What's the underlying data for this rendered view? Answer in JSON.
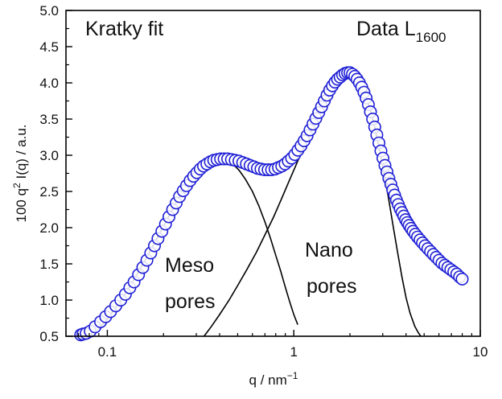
{
  "chart_data": {
    "type": "scatter",
    "x_scale": "log",
    "xlim": [
      0.06,
      10
    ],
    "ylim": [
      0.5,
      5.0
    ],
    "xlabel_main": "q / nm",
    "xlabel_sup": "−1",
    "ylabel_pre": "100 q",
    "ylabel_sup": "2",
    "ylabel_post": " I(q) / a.u.",
    "x_ticks": [
      {
        "value": 0.1,
        "label": "0.1"
      },
      {
        "value": 1,
        "label": "1"
      },
      {
        "value": 10,
        "label": "10"
      }
    ],
    "y_ticks": [
      {
        "value": 0.5,
        "label": "0.5"
      },
      {
        "value": 1.0,
        "label": "1.0"
      },
      {
        "value": 1.5,
        "label": "1.5"
      },
      {
        "value": 2.0,
        "label": "2.0"
      },
      {
        "value": 2.5,
        "label": "2.5"
      },
      {
        "value": 3.0,
        "label": "3.0"
      },
      {
        "value": 3.5,
        "label": "3.5"
      },
      {
        "value": 4.0,
        "label": "4.0"
      },
      {
        "value": 4.5,
        "label": "4.5"
      },
      {
        "value": 5.0,
        "label": "5.0"
      }
    ],
    "annotations": {
      "title_left": "Kratky fit",
      "title_right_main": "Data L",
      "title_right_sub": "1600",
      "meso_line1": "Meso",
      "meso_line2": "pores",
      "nano_line1": "Nano",
      "nano_line2": "pores"
    },
    "marker_color": "#1f1fd6",
    "fit_color": "#000000",
    "series": [
      {
        "name": "Data L1600",
        "kind": "points",
        "points": [
          [
            0.072,
            0.52
          ],
          [
            0.074,
            0.53
          ],
          [
            0.077,
            0.54
          ],
          [
            0.081,
            0.57
          ],
          [
            0.086,
            0.63
          ],
          [
            0.092,
            0.7
          ],
          [
            0.098,
            0.77
          ],
          [
            0.104,
            0.84
          ],
          [
            0.111,
            0.92
          ],
          [
            0.118,
            1.0
          ],
          [
            0.125,
            1.08
          ],
          [
            0.132,
            1.17
          ],
          [
            0.139,
            1.25
          ],
          [
            0.147,
            1.35
          ],
          [
            0.155,
            1.45
          ],
          [
            0.163,
            1.55
          ],
          [
            0.171,
            1.65
          ],
          [
            0.179,
            1.75
          ],
          [
            0.187,
            1.85
          ],
          [
            0.196,
            1.95
          ],
          [
            0.205,
            2.05
          ],
          [
            0.214,
            2.15
          ],
          [
            0.224,
            2.25
          ],
          [
            0.234,
            2.34
          ],
          [
            0.244,
            2.43
          ],
          [
            0.255,
            2.51
          ],
          [
            0.266,
            2.58
          ],
          [
            0.278,
            2.65
          ],
          [
            0.29,
            2.71
          ],
          [
            0.302,
            2.76
          ],
          [
            0.315,
            2.81
          ],
          [
            0.328,
            2.85
          ],
          [
            0.342,
            2.88
          ],
          [
            0.357,
            2.91
          ],
          [
            0.372,
            2.93
          ],
          [
            0.388,
            2.94
          ],
          [
            0.405,
            2.95
          ],
          [
            0.423,
            2.95
          ],
          [
            0.442,
            2.95
          ],
          [
            0.463,
            2.94
          ],
          [
            0.485,
            2.93
          ],
          [
            0.508,
            2.92
          ],
          [
            0.532,
            2.9
          ],
          [
            0.557,
            2.88
          ],
          [
            0.583,
            2.86
          ],
          [
            0.61,
            2.84
          ],
          [
            0.638,
            2.82
          ],
          [
            0.667,
            2.81
          ],
          [
            0.697,
            2.8
          ],
          [
            0.728,
            2.8
          ],
          [
            0.76,
            2.8
          ],
          [
            0.793,
            2.81
          ],
          [
            0.827,
            2.83
          ],
          [
            0.862,
            2.85
          ],
          [
            0.898,
            2.88
          ],
          [
            0.935,
            2.92
          ],
          [
            0.973,
            2.96
          ],
          [
            1.012,
            3.01
          ],
          [
            1.052,
            3.07
          ],
          [
            1.093,
            3.13
          ],
          [
            1.135,
            3.2
          ],
          [
            1.178,
            3.27
          ],
          [
            1.222,
            3.35
          ],
          [
            1.267,
            3.43
          ],
          [
            1.313,
            3.51
          ],
          [
            1.36,
            3.59
          ],
          [
            1.408,
            3.67
          ],
          [
            1.457,
            3.75
          ],
          [
            1.507,
            3.83
          ],
          [
            1.558,
            3.9
          ],
          [
            1.61,
            3.96
          ],
          [
            1.663,
            4.01
          ],
          [
            1.717,
            4.05
          ],
          [
            1.772,
            4.08
          ],
          [
            1.828,
            4.11
          ],
          [
            1.885,
            4.13
          ],
          [
            1.943,
            4.14
          ],
          [
            2.002,
            4.14
          ],
          [
            2.062,
            4.12
          ],
          [
            2.123,
            4.09
          ],
          [
            2.185,
            4.05
          ],
          [
            2.248,
            4.0
          ],
          [
            2.312,
            3.94
          ],
          [
            2.377,
            3.87
          ],
          [
            2.443,
            3.79
          ],
          [
            2.51,
            3.7
          ],
          [
            2.578,
            3.6
          ],
          [
            2.647,
            3.5
          ],
          [
            2.717,
            3.39
          ],
          [
            2.788,
            3.28
          ],
          [
            2.86,
            3.17
          ],
          [
            2.933,
            3.06
          ],
          [
            3.007,
            2.96
          ],
          [
            3.082,
            2.86
          ],
          [
            3.158,
            2.77
          ],
          [
            3.235,
            2.68
          ],
          [
            3.313,
            2.6
          ],
          [
            3.392,
            2.52
          ],
          [
            3.472,
            2.45
          ],
          [
            3.553,
            2.38
          ],
          [
            3.635,
            2.32
          ],
          [
            3.718,
            2.26
          ],
          [
            3.802,
            2.21
          ],
          [
            3.887,
            2.16
          ],
          [
            3.973,
            2.11
          ],
          [
            4.06,
            2.07
          ],
          [
            4.15,
            2.03
          ],
          [
            4.25,
            1.99
          ],
          [
            4.36,
            1.95
          ],
          [
            4.48,
            1.91
          ],
          [
            4.61,
            1.87
          ],
          [
            4.75,
            1.83
          ],
          [
            4.9,
            1.79
          ],
          [
            5.06,
            1.75
          ],
          [
            5.23,
            1.71
          ],
          [
            5.41,
            1.67
          ],
          [
            5.6,
            1.63
          ],
          [
            5.8,
            1.59
          ],
          [
            6.01,
            1.55
          ],
          [
            6.23,
            1.51
          ],
          [
            6.46,
            1.48
          ],
          [
            6.7,
            1.45
          ],
          [
            6.95,
            1.42
          ],
          [
            7.21,
            1.39
          ],
          [
            7.48,
            1.36
          ],
          [
            7.75,
            1.32
          ],
          [
            8.0,
            1.29
          ]
        ]
      },
      {
        "name": "Meso pores fit",
        "kind": "line",
        "points": [
          [
            0.09,
            0.6
          ],
          [
            0.1,
            0.74
          ],
          [
            0.11,
            0.88
          ],
          [
            0.12,
            1.02
          ],
          [
            0.13,
            1.16
          ],
          [
            0.14,
            1.3
          ],
          [
            0.15,
            1.43
          ],
          [
            0.165,
            1.62
          ],
          [
            0.18,
            1.8
          ],
          [
            0.2,
            2.02
          ],
          [
            0.22,
            2.22
          ],
          [
            0.24,
            2.4
          ],
          [
            0.26,
            2.55
          ],
          [
            0.28,
            2.68
          ],
          [
            0.3,
            2.78
          ],
          [
            0.32,
            2.86
          ],
          [
            0.34,
            2.91
          ],
          [
            0.36,
            2.94
          ],
          [
            0.38,
            2.96
          ],
          [
            0.4,
            2.96
          ],
          [
            0.42,
            2.95
          ],
          [
            0.45,
            2.92
          ],
          [
            0.48,
            2.86
          ],
          [
            0.51,
            2.79
          ],
          [
            0.55,
            2.67
          ],
          [
            0.6,
            2.5
          ],
          [
            0.65,
            2.3
          ],
          [
            0.7,
            2.08
          ],
          [
            0.75,
            1.85
          ],
          [
            0.8,
            1.62
          ],
          [
            0.85,
            1.4
          ],
          [
            0.9,
            1.18
          ],
          [
            0.95,
            0.98
          ],
          [
            1.0,
            0.8
          ],
          [
            1.05,
            0.66
          ]
        ]
      },
      {
        "name": "Nano pores fit",
        "kind": "line",
        "points": [
          [
            0.33,
            0.5
          ],
          [
            0.36,
            0.63
          ],
          [
            0.4,
            0.8
          ],
          [
            0.45,
            1.0
          ],
          [
            0.5,
            1.2
          ],
          [
            0.56,
            1.42
          ],
          [
            0.63,
            1.66
          ],
          [
            0.7,
            1.9
          ],
          [
            0.78,
            2.15
          ],
          [
            0.86,
            2.4
          ],
          [
            0.95,
            2.66
          ],
          [
            1.05,
            2.92
          ],
          [
            1.15,
            3.16
          ],
          [
            1.25,
            3.38
          ],
          [
            1.35,
            3.58
          ],
          [
            1.45,
            3.75
          ],
          [
            1.55,
            3.89
          ],
          [
            1.65,
            4.0
          ],
          [
            1.75,
            4.07
          ],
          [
            1.85,
            4.11
          ],
          [
            1.95,
            4.12
          ],
          [
            2.05,
            4.11
          ],
          [
            2.15,
            4.07
          ],
          [
            2.25,
            4.0
          ],
          [
            2.4,
            3.86
          ],
          [
            2.55,
            3.66
          ],
          [
            2.7,
            3.42
          ],
          [
            2.85,
            3.14
          ],
          [
            3.0,
            2.85
          ],
          [
            3.2,
            2.45
          ],
          [
            3.4,
            2.04
          ],
          [
            3.6,
            1.66
          ],
          [
            3.8,
            1.32
          ],
          [
            4.0,
            1.03
          ],
          [
            4.2,
            0.82
          ],
          [
            4.45,
            0.64
          ],
          [
            4.65,
            0.55
          ],
          [
            4.8,
            0.5
          ]
        ]
      }
    ]
  }
}
